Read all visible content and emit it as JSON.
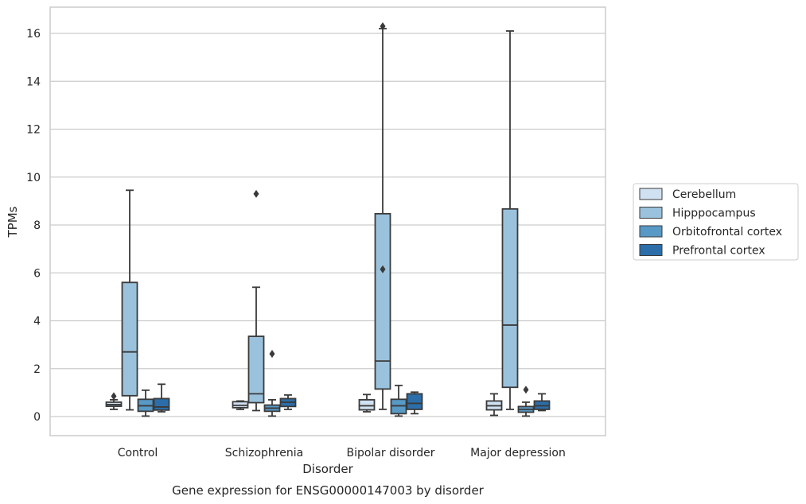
{
  "chart_data": {
    "type": "box",
    "title": "Gene expression for ENSG00000147003 by disorder",
    "xlabel": "Disorder",
    "ylabel": "TPMs",
    "ylim": [
      -0.8,
      17.1
    ],
    "yticks": [
      0,
      2,
      4,
      6,
      8,
      10,
      12,
      14,
      16
    ],
    "grid": "horizontal",
    "legend_position": "right",
    "categories": [
      "Control",
      "Schizophrenia",
      "Bipolar disorder",
      "Major depression"
    ],
    "series": [
      {
        "name": "Cerebellum",
        "color": "#d0e1f2",
        "boxes": [
          {
            "whislo": 0.3,
            "q1": 0.43,
            "med": 0.5,
            "q3": 0.6,
            "whishi": 0.7,
            "fliers": [
              0.85
            ]
          },
          {
            "whislo": 0.3,
            "q1": 0.37,
            "med": 0.47,
            "q3": 0.62,
            "whishi": 0.65,
            "fliers": []
          },
          {
            "whislo": 0.2,
            "q1": 0.28,
            "med": 0.45,
            "q3": 0.7,
            "whishi": 0.92,
            "fliers": []
          },
          {
            "whislo": 0.05,
            "q1": 0.28,
            "med": 0.45,
            "q3": 0.65,
            "whishi": 0.95,
            "fliers": []
          }
        ]
      },
      {
        "name": "Hipppocampus",
        "color": "#9ac2dc",
        "boxes": [
          {
            "whislo": 0.28,
            "q1": 0.87,
            "med": 2.7,
            "q3": 5.6,
            "whishi": 9.45,
            "fliers": []
          },
          {
            "whislo": 0.25,
            "q1": 0.58,
            "med": 0.95,
            "q3": 3.35,
            "whishi": 5.4,
            "fliers": [
              9.3
            ]
          },
          {
            "whislo": 0.3,
            "q1": 1.15,
            "med": 2.32,
            "q3": 8.47,
            "whishi": 16.2,
            "fliers": [
              6.15,
              16.3
            ]
          },
          {
            "whislo": 0.3,
            "q1": 1.22,
            "med": 3.82,
            "q3": 8.67,
            "whishi": 16.1,
            "fliers": []
          }
        ]
      },
      {
        "name": "Orbitofrontal cortex",
        "color": "#5899c5",
        "boxes": [
          {
            "whislo": 0.02,
            "q1": 0.22,
            "med": 0.45,
            "q3": 0.72,
            "whishi": 1.1,
            "fliers": []
          },
          {
            "whislo": 0.02,
            "q1": 0.22,
            "med": 0.35,
            "q3": 0.48,
            "whishi": 0.7,
            "fliers": [
              2.62
            ]
          },
          {
            "whislo": 0.02,
            "q1": 0.12,
            "med": 0.45,
            "q3": 0.72,
            "whishi": 1.3,
            "fliers": []
          },
          {
            "whislo": 0.02,
            "q1": 0.18,
            "med": 0.3,
            "q3": 0.42,
            "whishi": 0.6,
            "fliers": [
              1.12
            ]
          }
        ]
      },
      {
        "name": "Prefrontal cortex",
        "color": "#2b6ea9",
        "boxes": [
          {
            "whislo": 0.2,
            "q1": 0.27,
            "med": 0.4,
            "q3": 0.75,
            "whishi": 1.35,
            "fliers": []
          },
          {
            "whislo": 0.3,
            "q1": 0.42,
            "med": 0.6,
            "q3": 0.75,
            "whishi": 0.9,
            "fliers": []
          },
          {
            "whislo": 0.12,
            "q1": 0.3,
            "med": 0.55,
            "q3": 0.95,
            "whishi": 1.02,
            "fliers": []
          },
          {
            "whislo": 0.25,
            "q1": 0.3,
            "med": 0.45,
            "q3": 0.65,
            "whishi": 0.95,
            "fliers": []
          }
        ]
      }
    ]
  }
}
